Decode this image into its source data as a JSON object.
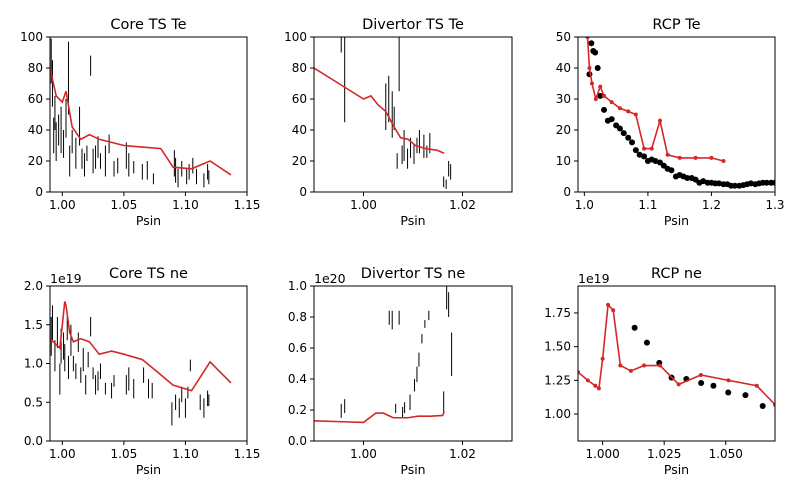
{
  "chart_data": [
    {
      "type": "line",
      "title": "Core TS Te",
      "xlabel": "Psin",
      "ylabel": "",
      "xlim": [
        0.99,
        1.15
      ],
      "ylim": [
        0,
        100
      ],
      "xticks": [
        1.0,
        1.05,
        1.1,
        1.15
      ],
      "xtick_labels": [
        "1.00",
        "1.05",
        "1.10",
        "1.15"
      ],
      "yticks": [
        0,
        20,
        40,
        60,
        80,
        100
      ],
      "ytick_labels": [
        "0",
        "20",
        "40",
        "60",
        "80",
        "100"
      ],
      "offset_text": "",
      "errorbars": [
        [
          0.991,
          70,
          99
        ],
        [
          0.992,
          55,
          85
        ],
        [
          0.993,
          25,
          48
        ],
        [
          0.994,
          40,
          62
        ],
        [
          0.995,
          20,
          45
        ],
        [
          0.997,
          30,
          50
        ],
        [
          0.999,
          25,
          55
        ],
        [
          1.001,
          22,
          40
        ],
        [
          1.003,
          35,
          60
        ],
        [
          1.005,
          50,
          97
        ],
        [
          1.006,
          10,
          30
        ],
        [
          1.008,
          25,
          40
        ],
        [
          1.011,
          15,
          35
        ],
        [
          1.014,
          30,
          55
        ],
        [
          1.016,
          15,
          28
        ],
        [
          1.018,
          10,
          25
        ],
        [
          1.02,
          20,
          30
        ],
        [
          1.023,
          75,
          88
        ],
        [
          1.025,
          12,
          28
        ],
        [
          1.027,
          15,
          30
        ],
        [
          1.029,
          22,
          36
        ],
        [
          1.031,
          15,
          25
        ],
        [
          1.035,
          10,
          30
        ],
        [
          1.038,
          25,
          37
        ],
        [
          1.042,
          10,
          20
        ],
        [
          1.045,
          12,
          22
        ],
        [
          1.052,
          15,
          32
        ],
        [
          1.054,
          10,
          25
        ],
        [
          1.058,
          12,
          20
        ],
        [
          1.065,
          8,
          18
        ],
        [
          1.069,
          8,
          20
        ],
        [
          1.074,
          5,
          12
        ],
        [
          1.091,
          10,
          27
        ],
        [
          1.092,
          6,
          22
        ],
        [
          1.094,
          3,
          15
        ],
        [
          1.097,
          10,
          20
        ],
        [
          1.101,
          5,
          15
        ],
        [
          1.103,
          8,
          18
        ],
        [
          1.106,
          12,
          22
        ],
        [
          1.109,
          5,
          15
        ],
        [
          1.115,
          3,
          12
        ],
        [
          1.118,
          8,
          18
        ],
        [
          1.119,
          5,
          14
        ]
      ],
      "series": [
        {
          "x": [
            0.99,
            0.995,
            1.0,
            1.003,
            1.008,
            1.015,
            1.022,
            1.03,
            1.04,
            1.05,
            1.065,
            1.08,
            1.09,
            1.105,
            1.12,
            1.137
          ],
          "y": [
            80,
            62,
            58,
            65,
            42,
            34,
            37,
            34,
            32,
            30,
            29,
            28,
            16,
            15,
            20,
            11
          ]
        }
      ]
    },
    {
      "type": "line",
      "title": "Divertor TS Te",
      "xlabel": "Psin",
      "ylabel": "",
      "xlim": [
        0.99,
        1.03
      ],
      "ylim": [
        0,
        100
      ],
      "xticks": [
        1.0,
        1.02
      ],
      "xtick_labels": [
        "1.00",
        "1.02"
      ],
      "yticks": [
        0,
        20,
        40,
        60,
        80,
        100
      ],
      "ytick_labels": [
        "0",
        "20",
        "40",
        "60",
        "80",
        "100"
      ],
      "offset_text": "",
      "errorbars": [
        [
          0.9955,
          90,
          100
        ],
        [
          0.9962,
          45,
          100
        ],
        [
          1.0045,
          40,
          70
        ],
        [
          1.0051,
          45,
          75
        ],
        [
          1.0058,
          35,
          65
        ],
        [
          1.0062,
          40,
          55
        ],
        [
          1.0072,
          65,
          100
        ],
        [
          1.0068,
          15,
          25
        ],
        [
          1.0078,
          18,
          30
        ],
        [
          1.0082,
          20,
          40
        ],
        [
          1.0089,
          15,
          28
        ],
        [
          1.0095,
          22,
          35
        ],
        [
          1.0102,
          18,
          30
        ],
        [
          1.0108,
          25,
          35
        ],
        [
          1.0113,
          25,
          40
        ],
        [
          1.0122,
          22,
          37
        ],
        [
          1.0128,
          22,
          30
        ],
        [
          1.0134,
          25,
          38
        ],
        [
          1.0162,
          3,
          10
        ],
        [
          1.0167,
          2,
          8
        ],
        [
          1.0172,
          10,
          20
        ],
        [
          1.0176,
          8,
          18
        ]
      ],
      "series": [
        {
          "x": [
            0.99,
            0.995,
            1.0,
            1.0015,
            1.003,
            1.0045,
            1.006,
            1.0075,
            1.009,
            1.0105,
            1.0125,
            1.0148,
            1.0163
          ],
          "y": [
            80,
            70,
            60,
            62,
            56,
            52,
            43,
            35,
            34,
            30,
            28,
            27,
            25
          ]
        }
      ]
    },
    {
      "type": "line",
      "title": "RCP Te",
      "xlabel": "Psin",
      "ylabel": "",
      "xlim": [
        0.99,
        1.3
      ],
      "ylim": [
        0,
        50
      ],
      "xticks": [
        1.0,
        1.1,
        1.2,
        1.3
      ],
      "xtick_labels": [
        "1.0",
        "1.1",
        "1.2",
        "1.3"
      ],
      "yticks": [
        0,
        10,
        20,
        30,
        40,
        50
      ],
      "ytick_labels": [
        "0",
        "10",
        "20",
        "30",
        "40",
        "50"
      ],
      "offset_text": "",
      "scatter": [
        [
          1.008,
          38
        ],
        [
          1.011,
          48
        ],
        [
          1.014,
          45.5
        ],
        [
          1.017,
          45
        ],
        [
          1.021,
          40
        ],
        [
          1.025,
          31
        ],
        [
          1.031,
          26.5
        ],
        [
          1.037,
          23
        ],
        [
          1.043,
          23.5
        ],
        [
          1.05,
          21.5
        ],
        [
          1.056,
          20.5
        ],
        [
          1.062,
          19
        ],
        [
          1.069,
          17.5
        ],
        [
          1.075,
          16
        ],
        [
          1.081,
          13.5
        ],
        [
          1.087,
          12
        ],
        [
          1.094,
          11.5
        ],
        [
          1.1,
          10
        ],
        [
          1.106,
          10.5
        ],
        [
          1.112,
          10
        ],
        [
          1.119,
          9.5
        ],
        [
          1.125,
          8.5
        ],
        [
          1.131,
          7.5
        ],
        [
          1.137,
          7
        ],
        [
          1.144,
          5
        ],
        [
          1.15,
          5.5
        ],
        [
          1.156,
          5
        ],
        [
          1.162,
          4.5
        ],
        [
          1.169,
          4.5
        ],
        [
          1.175,
          4
        ],
        [
          1.181,
          3
        ],
        [
          1.187,
          3.5
        ],
        [
          1.194,
          3
        ],
        [
          1.2,
          3
        ],
        [
          1.206,
          2.8
        ],
        [
          1.212,
          2.8
        ],
        [
          1.219,
          2.5
        ],
        [
          1.225,
          2.5
        ],
        [
          1.231,
          2
        ],
        [
          1.237,
          2
        ],
        [
          1.244,
          2
        ],
        [
          1.25,
          2.2
        ],
        [
          1.256,
          2.5
        ],
        [
          1.262,
          2.8
        ],
        [
          1.269,
          2.5
        ],
        [
          1.275,
          2.8
        ],
        [
          1.281,
          3
        ],
        [
          1.287,
          3
        ],
        [
          1.294,
          3
        ],
        [
          1.3,
          3
        ]
      ],
      "series": [
        {
          "x": [
            1.005,
            1.008,
            1.012,
            1.018,
            1.025,
            1.031,
            1.043,
            1.056,
            1.069,
            1.081,
            1.094,
            1.106,
            1.119,
            1.131,
            1.15,
            1.175,
            1.2,
            1.219
          ],
          "y": [
            50,
            40,
            35,
            30,
            34,
            31,
            29,
            27,
            26,
            25,
            14,
            14,
            23,
            12,
            11,
            11,
            11,
            10
          ]
        }
      ]
    },
    {
      "type": "line",
      "title": "Core TS ne",
      "xlabel": "Psin",
      "ylabel": "",
      "xlim": [
        0.99,
        1.15
      ],
      "ylim": [
        0,
        2.0
      ],
      "xticks": [
        1.0,
        1.05,
        1.1,
        1.15
      ],
      "xtick_labels": [
        "1.00",
        "1.05",
        "1.10",
        "1.15"
      ],
      "yticks": [
        0,
        0.5,
        1.0,
        1.5,
        2.0
      ],
      "ytick_labels": [
        "0.0",
        "0.5",
        "1.0",
        "1.5",
        "2.0"
      ],
      "offset_text": "1e19",
      "errorbars": [
        [
          0.991,
          1.1,
          1.6
        ],
        [
          0.992,
          1.3,
          1.75
        ],
        [
          0.994,
          0.9,
          1.3
        ],
        [
          0.996,
          1.2,
          1.6
        ],
        [
          0.998,
          0.6,
          1.0
        ],
        [
          0.999,
          1.0,
          1.45
        ],
        [
          1.001,
          1.05,
          1.4
        ],
        [
          1.002,
          0.9,
          1.25
        ],
        [
          1.004,
          1.3,
          1.6
        ],
        [
          1.005,
          0.8,
          1.1
        ],
        [
          1.007,
          1.1,
          1.5
        ],
        [
          1.009,
          0.9,
          1.1
        ],
        [
          1.011,
          0.8,
          1.0
        ],
        [
          1.013,
          1.15,
          1.4
        ],
        [
          1.015,
          0.75,
          0.95
        ],
        [
          1.017,
          0.9,
          1.2
        ],
        [
          1.019,
          0.6,
          0.85
        ],
        [
          1.021,
          0.95,
          1.15
        ],
        [
          1.023,
          1.35,
          1.6
        ],
        [
          1.025,
          0.8,
          0.95
        ],
        [
          1.027,
          0.6,
          0.85
        ],
        [
          1.029,
          0.65,
          0.9
        ],
        [
          1.031,
          0.8,
          1.0
        ],
        [
          1.035,
          0.6,
          0.75
        ],
        [
          1.04,
          0.55,
          0.75
        ],
        [
          1.042,
          0.7,
          0.85
        ],
        [
          1.052,
          0.6,
          0.85
        ],
        [
          1.054,
          0.65,
          0.95
        ],
        [
          1.058,
          0.55,
          0.8
        ],
        [
          1.066,
          0.75,
          0.95
        ],
        [
          1.07,
          0.55,
          0.8
        ],
        [
          1.073,
          0.55,
          0.75
        ],
        [
          1.089,
          0.2,
          0.5
        ],
        [
          1.092,
          0.4,
          0.6
        ],
        [
          1.095,
          0.3,
          0.55
        ],
        [
          1.097,
          0.5,
          0.7
        ],
        [
          1.1,
          0.3,
          0.55
        ],
        [
          1.102,
          0.55,
          0.7
        ],
        [
          1.104,
          0.9,
          1.05
        ],
        [
          1.112,
          0.4,
          0.6
        ],
        [
          1.115,
          0.3,
          0.55
        ],
        [
          1.118,
          0.45,
          0.65
        ],
        [
          1.119,
          0.45,
          0.6
        ]
      ],
      "series": [
        {
          "x": [
            0.99,
            0.998,
            1.002,
            1.003,
            1.006,
            1.009,
            1.015,
            1.022,
            1.03,
            1.04,
            1.05,
            1.065,
            1.078,
            1.09,
            1.105,
            1.12,
            1.137
          ],
          "y": [
            1.32,
            1.2,
            1.8,
            1.75,
            1.4,
            1.28,
            1.32,
            1.28,
            1.12,
            1.16,
            1.12,
            1.05,
            0.88,
            0.72,
            0.65,
            1.02,
            0.75
          ]
        }
      ]
    },
    {
      "type": "line",
      "title": "Divertor TS ne",
      "xlabel": "Psin",
      "ylabel": "",
      "xlim": [
        0.99,
        1.03
      ],
      "ylim": [
        0,
        1.0
      ],
      "xticks": [
        1.0,
        1.02
      ],
      "xtick_labels": [
        "1.00",
        "1.02"
      ],
      "yticks": [
        0,
        0.2,
        0.4,
        0.6,
        0.8,
        1.0
      ],
      "ytick_labels": [
        "0.0",
        "0.2",
        "0.4",
        "0.6",
        "0.8",
        "1.0"
      ],
      "offset_text": "1e20",
      "errorbars": [
        [
          0.9955,
          0.15,
          0.24
        ],
        [
          0.9962,
          0.18,
          0.27
        ],
        [
          1.0052,
          0.75,
          0.84
        ],
        [
          1.0058,
          0.72,
          0.84
        ],
        [
          1.0065,
          0.18,
          0.24
        ],
        [
          1.0072,
          0.75,
          0.84
        ],
        [
          1.0079,
          0.15,
          0.22
        ],
        [
          1.0083,
          0.18,
          0.25
        ],
        [
          1.0094,
          0.2,
          0.3
        ],
        [
          1.0103,
          0.32,
          0.4
        ],
        [
          1.0108,
          0.38,
          0.48
        ],
        [
          1.0112,
          0.48,
          0.57
        ],
        [
          1.0118,
          0.63,
          0.69
        ],
        [
          1.0124,
          0.73,
          0.78
        ],
        [
          1.0132,
          0.78,
          0.84
        ],
        [
          1.0162,
          0.18,
          0.32
        ],
        [
          1.0168,
          0.85,
          1.0
        ],
        [
          1.0172,
          0.8,
          0.96
        ],
        [
          1.0178,
          0.42,
          0.7
        ]
      ],
      "series": [
        {
          "x": [
            0.99,
            0.995,
            1.0,
            1.0025,
            1.004,
            1.006,
            1.0075,
            1.009,
            1.011,
            1.0135,
            1.016,
            1.0163
          ],
          "y": [
            0.13,
            0.125,
            0.12,
            0.18,
            0.18,
            0.15,
            0.15,
            0.15,
            0.16,
            0.16,
            0.165,
            0.19
          ]
        }
      ]
    },
    {
      "type": "line",
      "title": "RCP ne",
      "xlabel": "Psin",
      "ylabel": "",
      "xlim": [
        0.99,
        1.07
      ],
      "ylim": [
        0.8,
        1.95
      ],
      "xticks": [
        1.0,
        1.025,
        1.05
      ],
      "xtick_labels": [
        "1.000",
        "1.025",
        "1.050"
      ],
      "yticks": [
        1.0,
        1.25,
        1.5,
        1.75
      ],
      "ytick_labels": [
        "1.00",
        "1.25",
        "1.50",
        "1.75"
      ],
      "offset_text": "1e19",
      "scatter": [
        [
          1.013,
          1.64
        ],
        [
          1.018,
          1.53
        ],
        [
          1.023,
          1.38
        ],
        [
          1.028,
          1.27
        ],
        [
          1.034,
          1.26
        ],
        [
          1.04,
          1.23
        ],
        [
          1.045,
          1.21
        ],
        [
          1.051,
          1.16
        ],
        [
          1.058,
          1.14
        ],
        [
          1.065,
          1.06
        ]
      ],
      "series": [
        {
          "x": [
            0.99,
            0.994,
            0.997,
            0.9985,
            1.0,
            1.0022,
            1.0043,
            1.0072,
            1.0115,
            1.0168,
            1.0233,
            1.0309,
            1.0399,
            1.0511,
            1.0626,
            1.07
          ],
          "y": [
            1.31,
            1.25,
            1.21,
            1.19,
            1.41,
            1.81,
            1.77,
            1.36,
            1.32,
            1.36,
            1.36,
            1.22,
            1.29,
            1.25,
            1.21,
            1.07
          ]
        }
      ]
    }
  ]
}
